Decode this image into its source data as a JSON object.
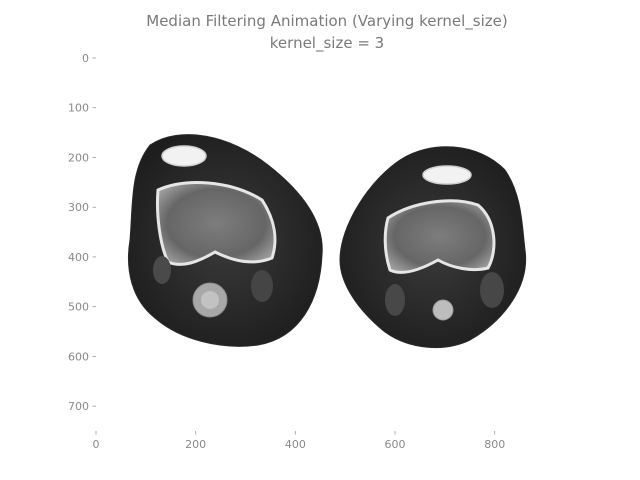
{
  "chart_data": {
    "type": "image",
    "title": "Median Filtering Animation (Varying kernel_size)",
    "subtitle": "kernel_size = 3",
    "xlabel": "",
    "ylabel": "",
    "xlim": [
      0,
      927
    ],
    "ylim": [
      750,
      0
    ],
    "x_ticks": [
      0,
      200,
      400,
      600,
      800
    ],
    "x_tick_labels": [
      "0",
      "200",
      "400",
      "600",
      "800"
    ],
    "y_ticks": [
      0,
      100,
      200,
      300,
      400,
      500,
      600,
      700
    ],
    "y_tick_labels": [
      "0",
      "100",
      "200",
      "300",
      "400",
      "500",
      "600",
      "700"
    ],
    "grid": false,
    "image_content": "grayscale-axial-ct-cross-section-of-both-knees"
  }
}
